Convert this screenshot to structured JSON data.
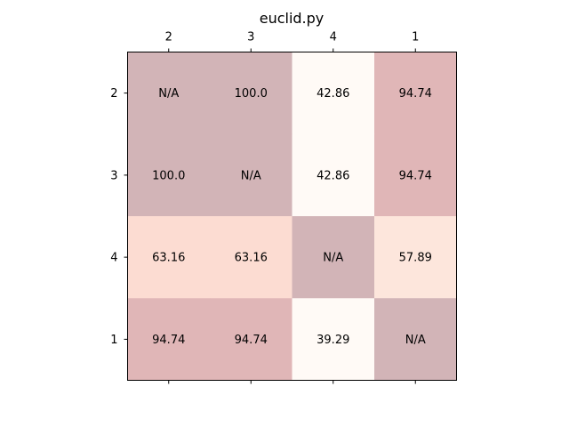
{
  "chart_data": {
    "type": "heatmap",
    "title": "euclid.py",
    "x_categories": [
      "2",
      "3",
      "4",
      "1"
    ],
    "y_categories": [
      "2",
      "3",
      "4",
      "1"
    ],
    "x_tick_position": "top",
    "values": [
      [
        null,
        100.0,
        42.86,
        94.74
      ],
      [
        100.0,
        null,
        42.86,
        94.74
      ],
      [
        63.16,
        63.16,
        null,
        57.89
      ],
      [
        94.74,
        94.74,
        39.29,
        null
      ]
    ],
    "cell_labels": [
      [
        "N/A",
        "100.0",
        "42.86",
        "94.74"
      ],
      [
        "100.0",
        "N/A",
        "42.86",
        "94.74"
      ],
      [
        "63.16",
        "63.16",
        "N/A",
        "57.89"
      ],
      [
        "94.74",
        "94.74",
        "39.29",
        "N/A"
      ]
    ],
    "colors": {
      "na": "#d2b4b7",
      "100.0": "#d2b4b7",
      "94.74": "#e0b6b7",
      "63.16": "#fcdcd2",
      "57.89": "#fde6dc",
      "42.86": "#fffaf6",
      "39.29": "#fffaf6",
      "frame": "#000000"
    }
  }
}
